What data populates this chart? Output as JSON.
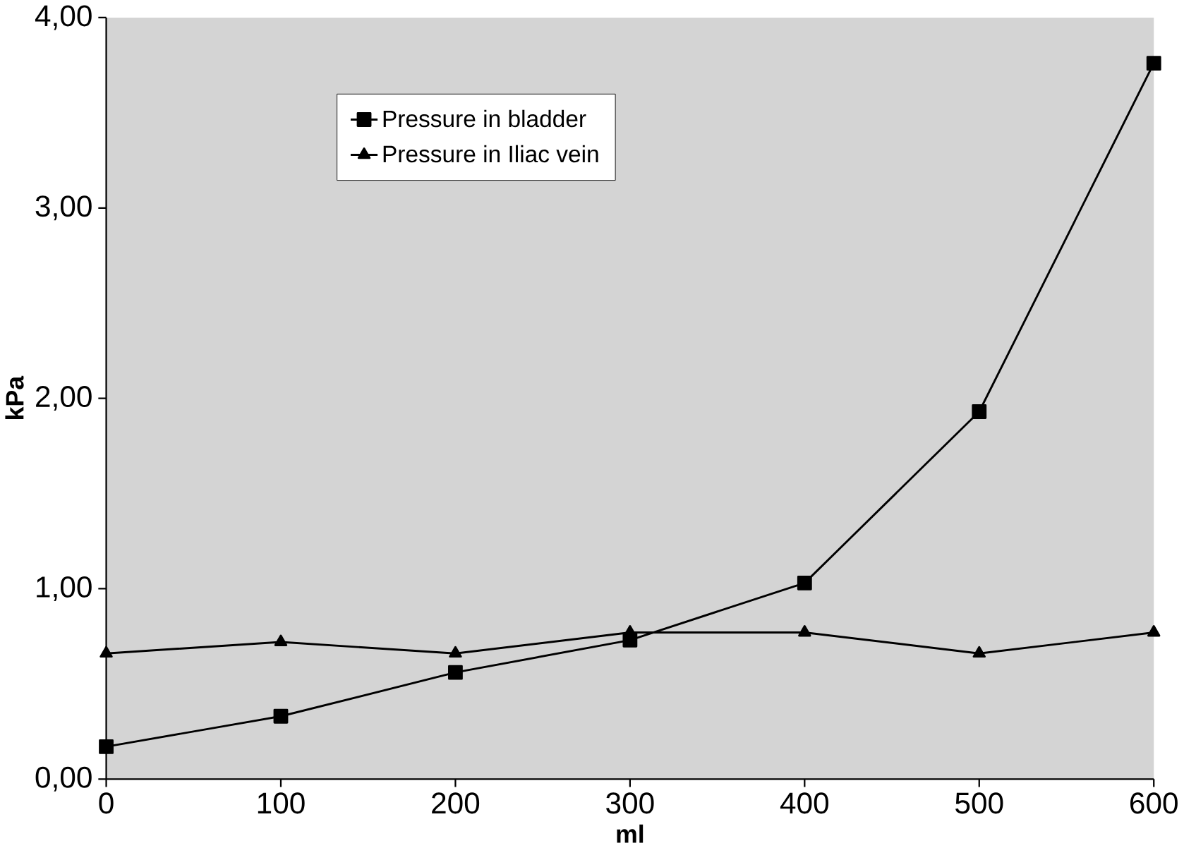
{
  "chart_data": {
    "type": "line",
    "xlabel": "ml",
    "ylabel": "kPa",
    "x": [
      0,
      100,
      200,
      300,
      400,
      500,
      600
    ],
    "series": [
      {
        "name": "Pressure in bladder",
        "color": "#000000",
        "marker": "square",
        "values": [
          0.17,
          0.33,
          0.56,
          0.73,
          1.03,
          1.93,
          3.76
        ]
      },
      {
        "name": "Pressure in Iliac vein",
        "color": "#000000",
        "marker": "triangle",
        "values": [
          0.66,
          0.72,
          0.66,
          0.77,
          0.77,
          0.66,
          0.77
        ]
      }
    ],
    "xlim": [
      0,
      600
    ],
    "xticks": [
      0,
      100,
      200,
      300,
      400,
      500,
      600
    ],
    "ylim": [
      0,
      4
    ],
    "yticks": [
      {
        "value": 0,
        "label": "0,00"
      },
      {
        "value": 1,
        "label": "1,00"
      },
      {
        "value": 2,
        "label": "2,00"
      },
      {
        "value": 3,
        "label": "3,00"
      },
      {
        "value": 4,
        "label": "4,00"
      }
    ],
    "grid": false,
    "legend": "top",
    "line_style": "solid"
  }
}
